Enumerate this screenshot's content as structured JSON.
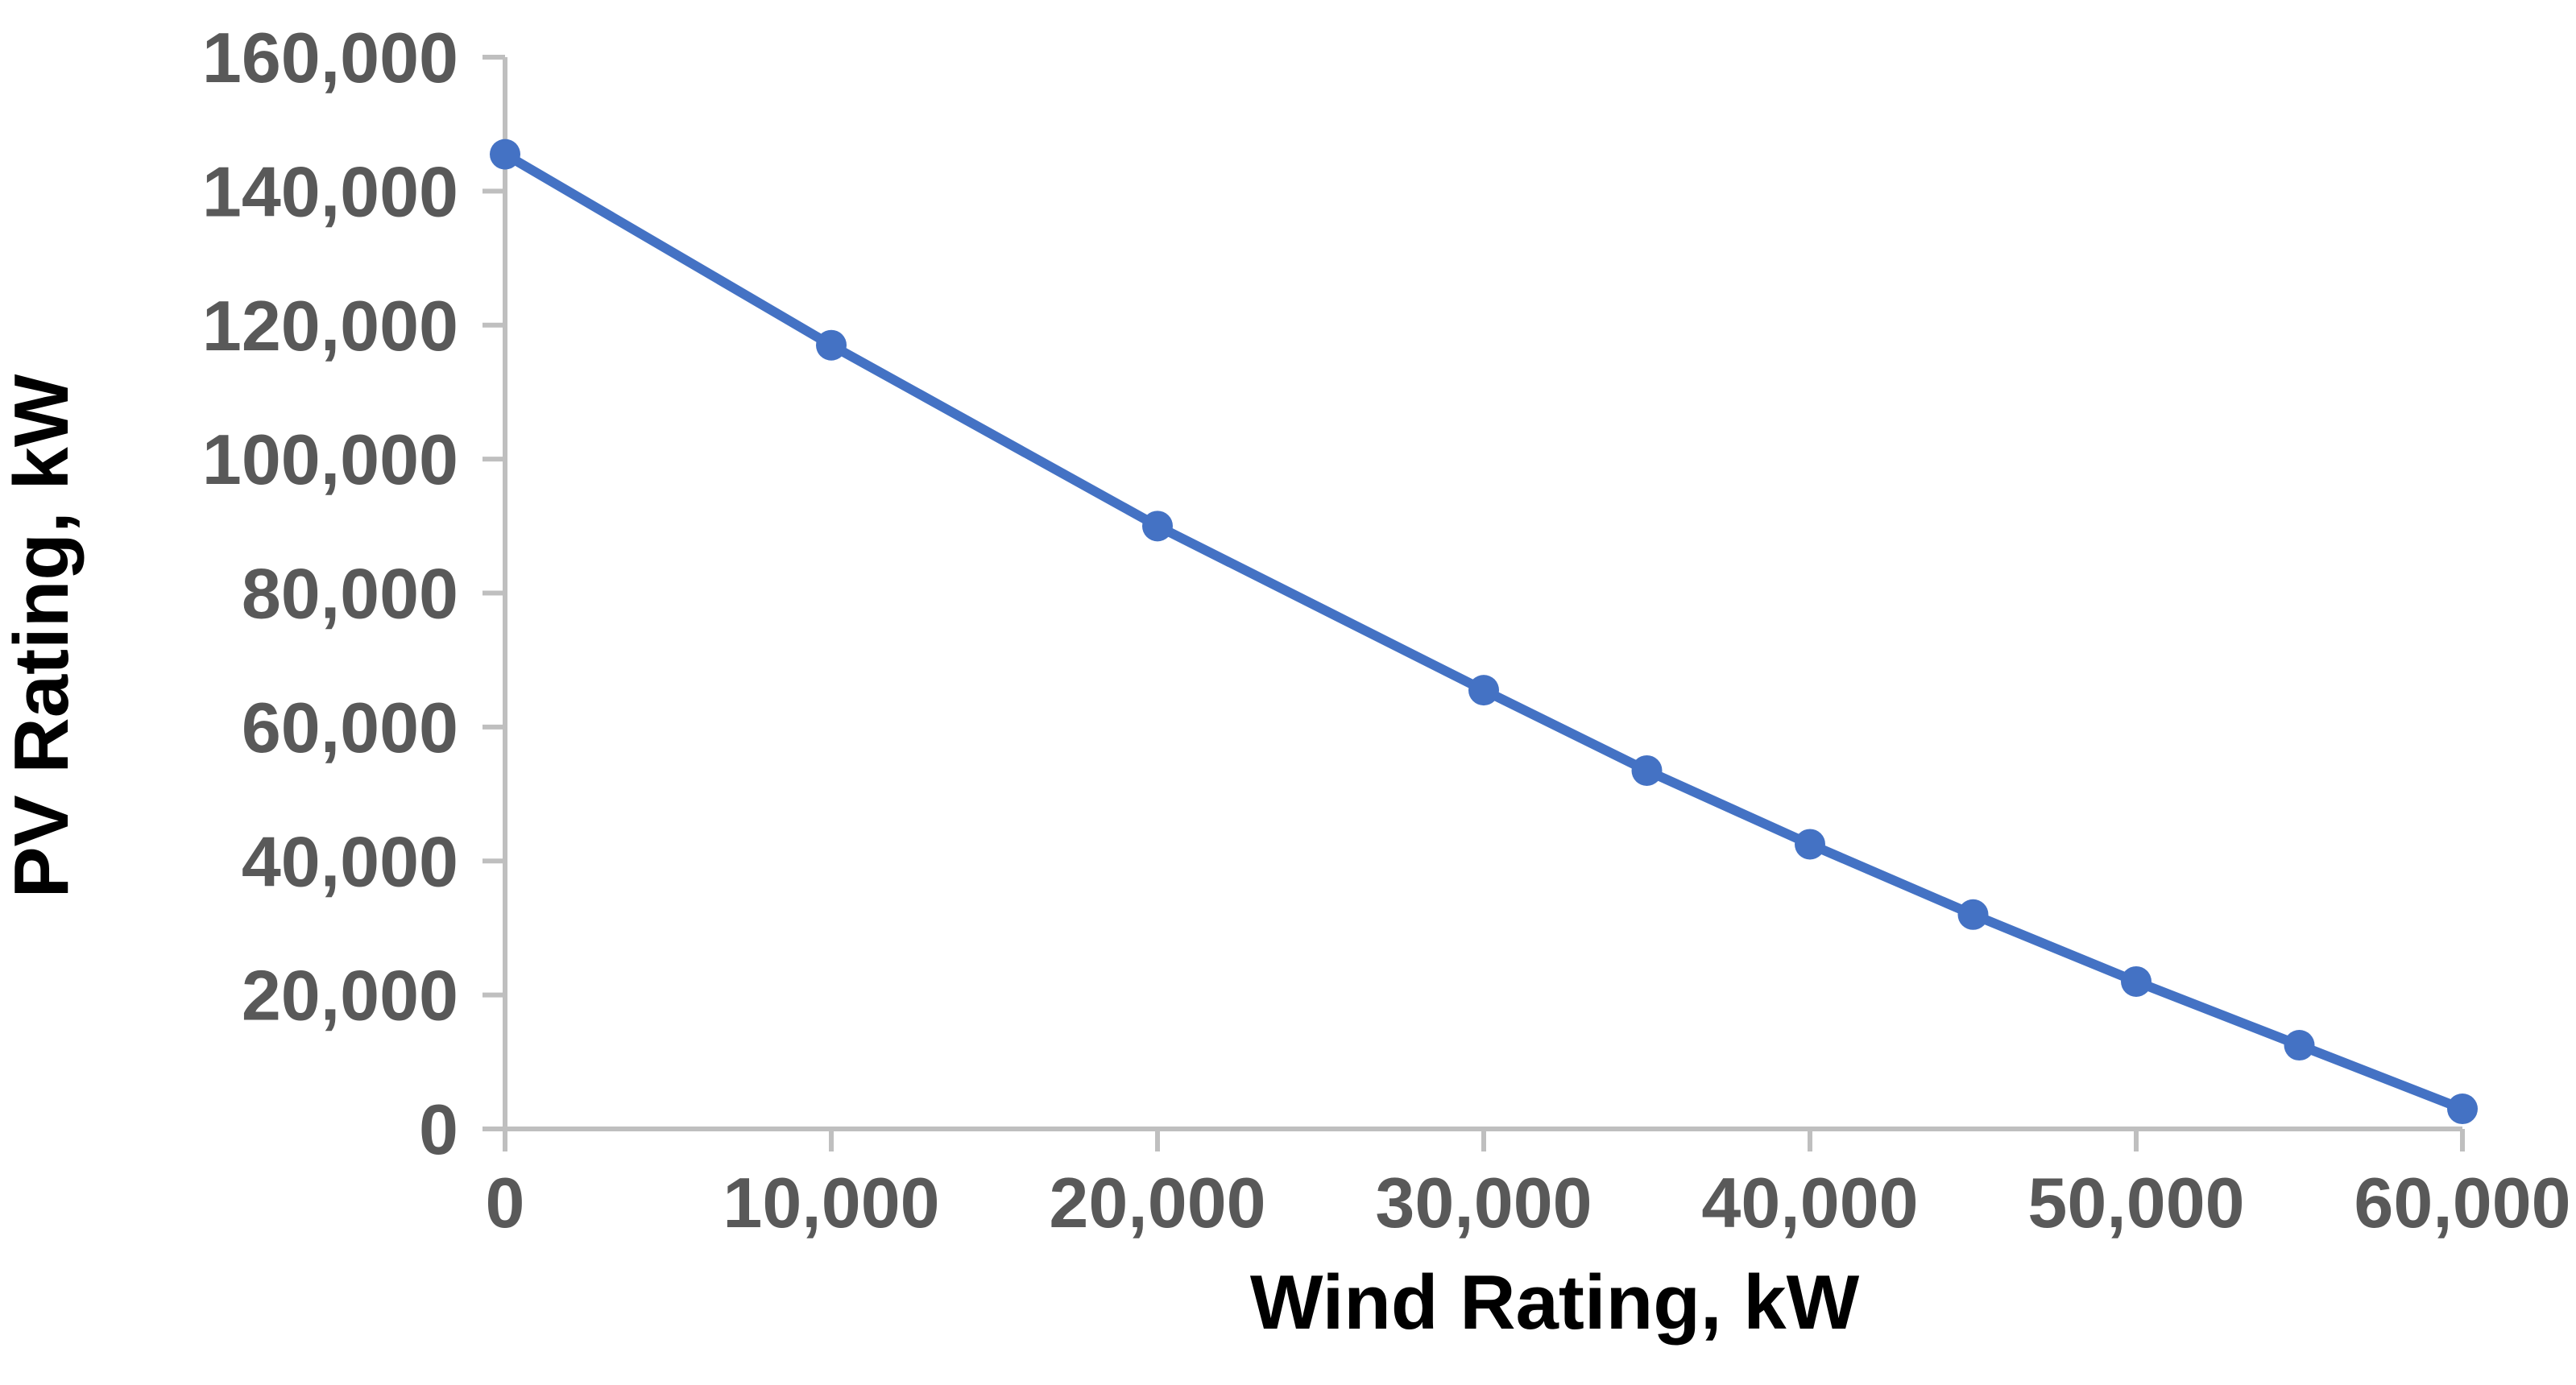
{
  "chart_data": {
    "type": "line",
    "title": "",
    "xlabel": "Wind Rating, kW",
    "ylabel": "PV Rating, kW",
    "x": [
      0,
      10000,
      20000,
      30000,
      35000,
      40000,
      45000,
      50000,
      55000,
      60000
    ],
    "y": [
      145500,
      117000,
      90000,
      65500,
      53500,
      42500,
      32000,
      22000,
      12500,
      3000
    ],
    "xlim": [
      0,
      60000
    ],
    "ylim": [
      0,
      160000
    ],
    "x_ticks": [
      0,
      10000,
      20000,
      30000,
      40000,
      50000,
      60000
    ],
    "y_ticks": [
      0,
      20000,
      40000,
      60000,
      80000,
      100000,
      120000,
      140000,
      160000
    ],
    "tick_label_format": "thousands-comma",
    "grid": false,
    "legend": false,
    "marker": "circle",
    "line_color": "#4472C4",
    "marker_color": "#4472C4",
    "axis_color": "#BFBFBF",
    "tick_label_color": "#595959",
    "axis_title_color": "#000000",
    "background_color": "#FFFFFF"
  }
}
